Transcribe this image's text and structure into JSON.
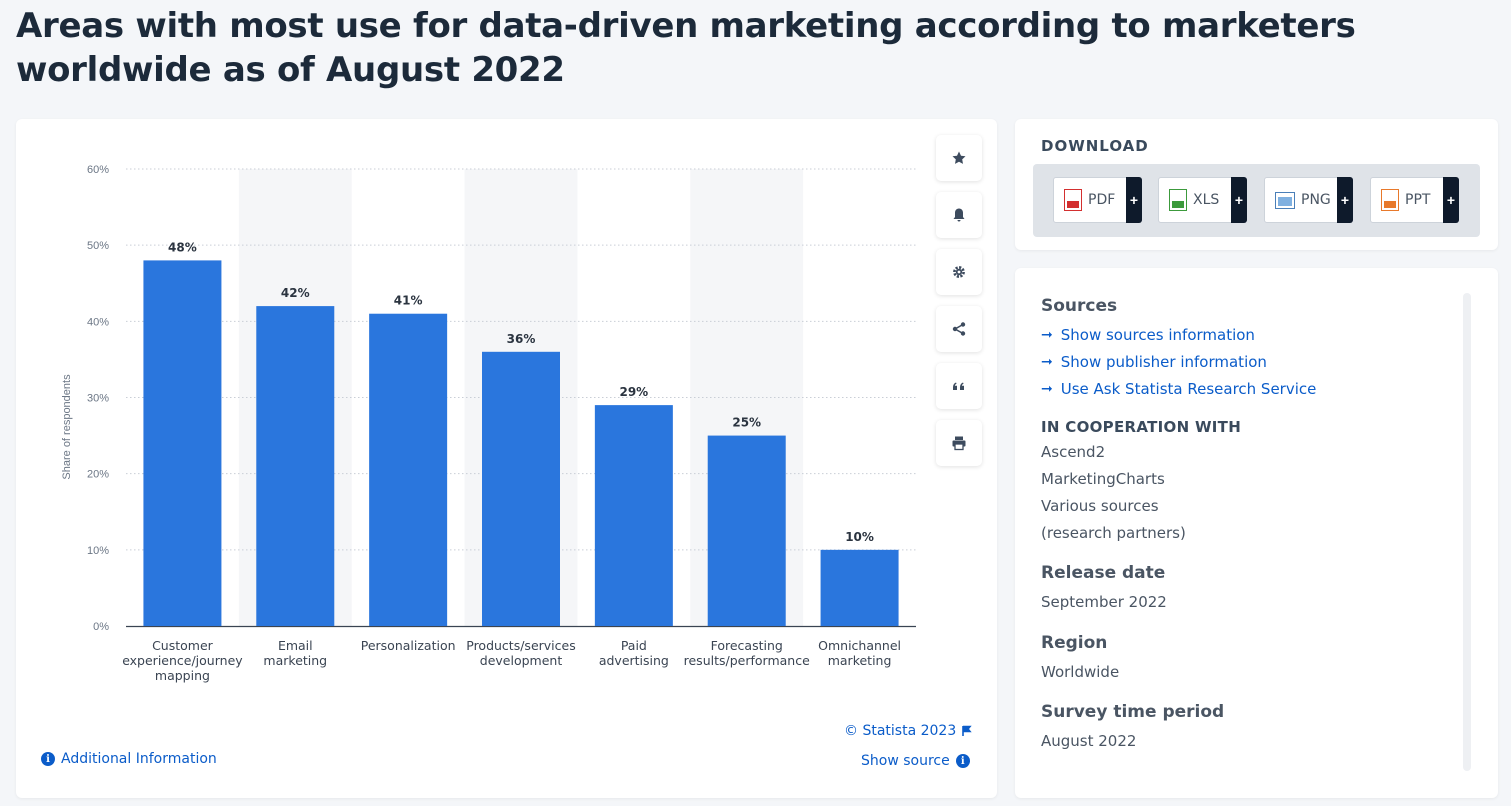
{
  "page": {
    "title": "Areas with most use for data-driven marketing according to marketers worldwide as of August 2022"
  },
  "toolbar": {
    "icons": [
      "star-icon",
      "bell-icon",
      "gear-icon",
      "share-icon",
      "quote-icon",
      "print-icon"
    ]
  },
  "chart_data": {
    "type": "bar",
    "title": "",
    "xlabel": "",
    "ylabel": "Share of respondents",
    "categories": [
      [
        "Customer",
        "experience/journey",
        "mapping"
      ],
      [
        "Email",
        "marketing"
      ],
      [
        "Personalization"
      ],
      [
        "Products/services",
        "development"
      ],
      [
        "Paid",
        "advertising"
      ],
      [
        "Forecasting",
        "results/performance"
      ],
      [
        "Omnichannel",
        "marketing"
      ]
    ],
    "values": [
      48,
      42,
      41,
      36,
      29,
      25,
      10
    ],
    "value_labels": [
      "48%",
      "42%",
      "41%",
      "36%",
      "29%",
      "25%",
      "10%"
    ],
    "yticks": [
      "0%",
      "10%",
      "20%",
      "30%",
      "40%",
      "50%",
      "60%"
    ],
    "ylim": [
      0,
      60
    ],
    "bar_color": "#2a76dd",
    "grid": true
  },
  "footer": {
    "copyright": "© Statista 2023",
    "additional_info": "Additional Information",
    "show_source": "Show source"
  },
  "download": {
    "title": "DOWNLOAD",
    "buttons": [
      {
        "label": "PDF",
        "color": "#d32f2f"
      },
      {
        "label": "XLS",
        "color": "#3c9a3c"
      },
      {
        "label": "PNG",
        "color": "#4a7fb8"
      },
      {
        "label": "PPT",
        "color": "#e8792b"
      }
    ]
  },
  "info": {
    "sources_heading": "Sources",
    "links": [
      "Show sources information",
      "Show publisher information",
      "Use Ask Statista Research Service"
    ],
    "coop_heading": "IN COOPERATION WITH",
    "coop": [
      "Ascend2",
      "MarketingCharts",
      "Various sources",
      "(research partners)"
    ],
    "release_heading": "Release date",
    "release": "September 2022",
    "region_heading": "Region",
    "region": "Worldwide",
    "period_heading": "Survey time period",
    "period": "August 2022"
  }
}
